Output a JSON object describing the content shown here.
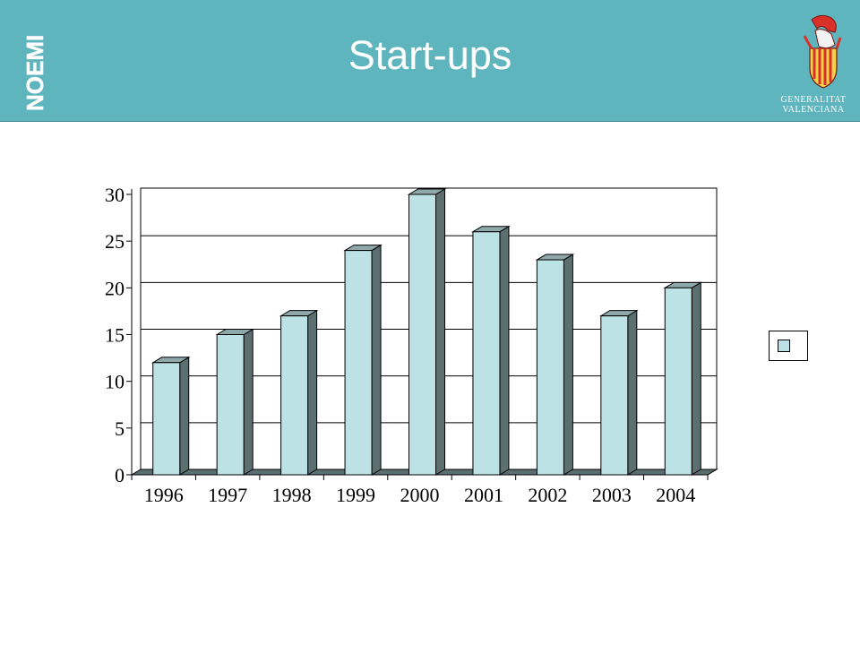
{
  "header": {
    "brand": "NOEMI",
    "title": "Start-ups",
    "org_line1": "GENERALITAT",
    "org_line2": "VALENCIANA",
    "emblem_icon": "generalitat-valenciana-emblem-icon",
    "background_color": "#5fb5be"
  },
  "chart_data": {
    "type": "bar",
    "categories": [
      "1996",
      "1997",
      "1998",
      "1999",
      "2000",
      "2001",
      "2002",
      "2003",
      "2004"
    ],
    "series": [
      {
        "values": [
          12,
          15,
          17,
          24,
          30,
          26,
          23,
          17,
          20
        ]
      }
    ],
    "title": "",
    "xlabel": "",
    "ylabel": "",
    "ylim": [
      0,
      30
    ],
    "yticks": [
      0,
      5,
      10,
      15,
      20,
      25,
      30
    ],
    "grid": true,
    "legend": "right",
    "style": "3d",
    "bar_front_color": "#bde2e6",
    "bar_side_color": "#5b6e70",
    "bar_top_color": "#8fa9ab"
  }
}
